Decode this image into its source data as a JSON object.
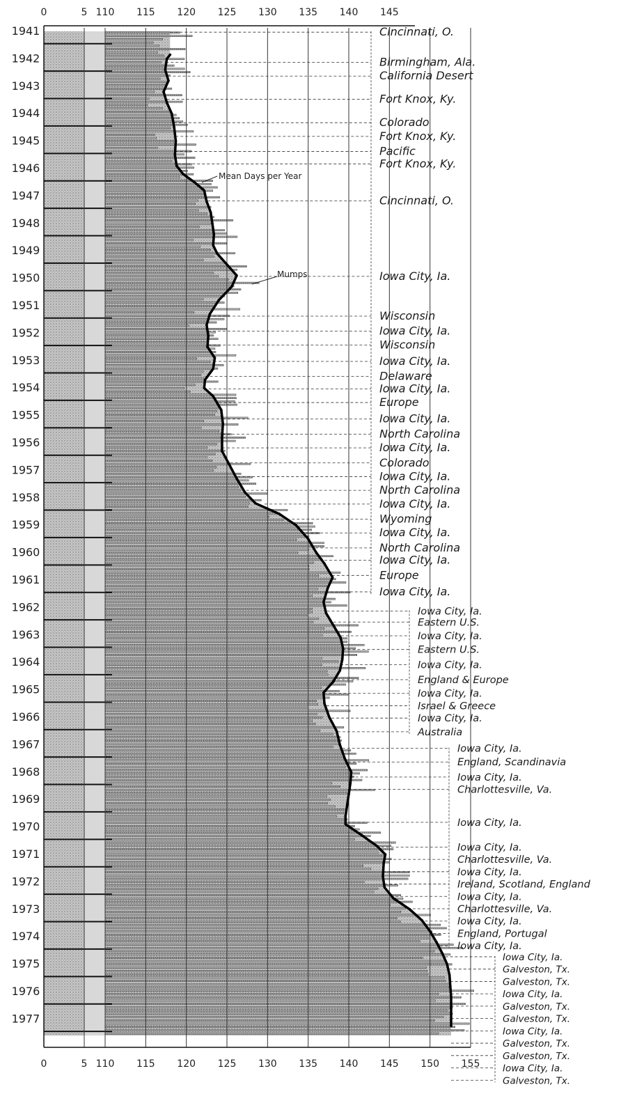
{
  "chart_data": {
    "type": "line",
    "title": "",
    "xlabel": "",
    "ylabel": "",
    "xlim": [
      0,
      155
    ],
    "axis_break": {
      "from": 5,
      "to": 110
    },
    "x_ticks_top": [
      "0",
      "5",
      "110",
      "115",
      "120",
      "125",
      "130",
      "135",
      "140",
      "145"
    ],
    "x_ticks_bottom": [
      "0",
      "5",
      "110",
      "115",
      "120",
      "125",
      "130",
      "135",
      "140",
      "145",
      "150",
      "155"
    ],
    "x_tick_values_top": [
      0,
      5,
      110,
      115,
      120,
      125,
      130,
      135,
      140,
      145
    ],
    "x_tick_values_bottom": [
      0,
      5,
      110,
      115,
      120,
      125,
      130,
      135,
      140,
      145,
      150,
      155
    ],
    "years": [
      "1941",
      "1942",
      "1943",
      "1944",
      "1945",
      "1946",
      "1947",
      "1948",
      "1949",
      "1950",
      "1951",
      "1952",
      "1953",
      "1954",
      "1955",
      "1956",
      "1957",
      "1958",
      "1959",
      "1960",
      "1961",
      "1962",
      "1963",
      "1964",
      "1965",
      "1966",
      "1967",
      "1968",
      "1969",
      "1970",
      "1971",
      "1972",
      "1973",
      "1974",
      "1975",
      "1976",
      "1977"
    ],
    "annotations": [
      "Mean Days per Year",
      "Mumps"
    ],
    "series": [
      {
        "name": "Mean Days per Year",
        "points": [
          [
            1941.85,
            118.0
          ],
          [
            1942.0,
            117.6
          ],
          [
            1942.4,
            117.4
          ],
          [
            1942.8,
            117.8
          ],
          [
            1943.2,
            117.2
          ],
          [
            1943.6,
            117.6
          ],
          [
            1944.0,
            118.2
          ],
          [
            1944.5,
            118.5
          ],
          [
            1945.0,
            118.7
          ],
          [
            1945.5,
            118.6
          ],
          [
            1945.9,
            118.8
          ],
          [
            1946.2,
            119.6
          ],
          [
            1946.5,
            121.0
          ],
          [
            1946.8,
            122.2
          ],
          [
            1947.2,
            122.5
          ],
          [
            1947.6,
            123.0
          ],
          [
            1948.0,
            123.2
          ],
          [
            1948.4,
            123.4
          ],
          [
            1948.8,
            123.3
          ],
          [
            1949.1,
            123.8
          ],
          [
            1949.5,
            125.0
          ],
          [
            1949.9,
            126.2
          ],
          [
            1950.3,
            125.6
          ],
          [
            1950.8,
            124.0
          ],
          [
            1951.3,
            122.9
          ],
          [
            1951.7,
            122.5
          ],
          [
            1952.1,
            122.7
          ],
          [
            1952.5,
            122.6
          ],
          [
            1952.9,
            123.5
          ],
          [
            1953.3,
            123.3
          ],
          [
            1953.7,
            122.3
          ],
          [
            1954.0,
            122.2
          ],
          [
            1954.3,
            123.3
          ],
          [
            1954.8,
            124.3
          ],
          [
            1955.3,
            124.5
          ],
          [
            1955.8,
            124.4
          ],
          [
            1956.3,
            124.4
          ],
          [
            1956.8,
            125.3
          ],
          [
            1957.3,
            126.2
          ],
          [
            1957.8,
            127.2
          ],
          [
            1958.2,
            128.5
          ],
          [
            1958.6,
            131.5
          ],
          [
            1959.0,
            133.5
          ],
          [
            1959.5,
            135.0
          ],
          [
            1960.0,
            136.0
          ],
          [
            1960.4,
            137.0
          ],
          [
            1960.9,
            138.0
          ],
          [
            1961.3,
            137.4
          ],
          [
            1961.8,
            136.9
          ],
          [
            1962.2,
            137.2
          ],
          [
            1962.6,
            138.0
          ],
          [
            1963.1,
            139.0
          ],
          [
            1963.5,
            139.3
          ],
          [
            1963.9,
            139.2
          ],
          [
            1964.3,
            138.9
          ],
          [
            1964.7,
            138.1
          ],
          [
            1965.1,
            136.9
          ],
          [
            1965.5,
            137.0
          ],
          [
            1966.0,
            137.6
          ],
          [
            1966.5,
            138.5
          ],
          [
            1967.0,
            138.9
          ],
          [
            1967.5,
            139.5
          ],
          [
            1968.0,
            140.3
          ],
          [
            1968.4,
            140.2
          ],
          [
            1968.8,
            140.0
          ],
          [
            1969.2,
            139.8
          ],
          [
            1969.6,
            139.6
          ],
          [
            1969.9,
            139.6
          ],
          [
            1970.3,
            141.6
          ],
          [
            1970.7,
            143.5
          ],
          [
            1971.0,
            144.5
          ],
          [
            1971.3,
            144.3
          ],
          [
            1971.8,
            144.2
          ],
          [
            1972.2,
            144.4
          ],
          [
            1972.6,
            145.5
          ],
          [
            1973.0,
            147.5
          ],
          [
            1973.4,
            149.0
          ],
          [
            1973.8,
            150.0
          ],
          [
            1974.2,
            150.8
          ],
          [
            1974.6,
            151.5
          ],
          [
            1975.0,
            152.1
          ],
          [
            1975.4,
            152.4
          ],
          [
            1975.8,
            152.5
          ],
          [
            1976.2,
            152.6
          ],
          [
            1976.6,
            152.6
          ],
          [
            1977.0,
            152.6
          ],
          [
            1977.25,
            152.6
          ]
        ]
      }
    ],
    "locations": {
      "col1": [
        {
          "label": "Cincinnati, O.",
          "year": 1940.7
        },
        {
          "label": "Birmingham, Ala.",
          "year": 1941.8
        },
        {
          "label": "California Desert",
          "year": 1942.3
        },
        {
          "label": "Fort Knox, Ky.",
          "year": 1943.15
        },
        {
          "label": "Colorado",
          "year": 1944.0
        },
        {
          "label": "Fort Knox, Ky.",
          "year": 1944.5
        },
        {
          "label": "Pacific",
          "year": 1945.05
        },
        {
          "label": "Fort Knox, Ky.",
          "year": 1945.5
        },
        {
          "label": "Cincinnati, O.",
          "year": 1946.85
        },
        {
          "label": "Iowa City, Ia.",
          "year": 1949.6
        },
        {
          "label": "Wisconsin",
          "year": 1951.05
        },
        {
          "label": "Iowa City, Ia.",
          "year": 1951.6
        },
        {
          "label": "Wisconsin",
          "year": 1952.1
        },
        {
          "label": "Iowa City, Ia.",
          "year": 1952.7
        },
        {
          "label": "Delaware",
          "year": 1953.25
        },
        {
          "label": "Iowa City, Ia.",
          "year": 1953.7
        },
        {
          "label": "Europe",
          "year": 1954.2
        },
        {
          "label": "Iowa City, Ia.",
          "year": 1954.8
        },
        {
          "label": "North Carolina",
          "year": 1955.35
        },
        {
          "label": "Iowa City, Ia.",
          "year": 1955.85
        },
        {
          "label": "Colorado",
          "year": 1956.4
        },
        {
          "label": "Iowa City, Ia.",
          "year": 1956.9
        },
        {
          "label": "North Carolina",
          "year": 1957.4
        },
        {
          "label": "Iowa City, Ia.",
          "year": 1957.9
        },
        {
          "label": "Wyoming",
          "year": 1958.45
        },
        {
          "label": "Iowa City, Ia.",
          "year": 1958.95
        },
        {
          "label": "North Carolina",
          "year": 1959.5
        },
        {
          "label": "Iowa City, Ia.",
          "year": 1959.95
        },
        {
          "label": "Europe",
          "year": 1960.5
        },
        {
          "label": "Iowa City, Ia.",
          "year": 1961.1
        }
      ],
      "col2": [
        {
          "label": "Iowa City, Ia.",
          "year": 1961.8
        },
        {
          "label": "Eastern U.S.",
          "year": 1962.2
        },
        {
          "label": "Iowa City, Ia.",
          "year": 1962.7
        },
        {
          "label": "Eastern U.S.",
          "year": 1963.2
        },
        {
          "label": "Iowa City, Ia.",
          "year": 1963.75
        },
        {
          "label": "England & Europe",
          "year": 1964.3
        },
        {
          "label": "Iowa City, Ia.",
          "year": 1964.8
        },
        {
          "label": "Israel & Greece",
          "year": 1965.25
        },
        {
          "label": "Iowa City, Ia.",
          "year": 1965.7
        },
        {
          "label": "Australia",
          "year": 1966.2
        }
      ],
      "col3": [
        {
          "label": "Iowa City, Ia.",
          "year": 1966.8
        },
        {
          "label": "England, Scandinavia",
          "year": 1967.3
        },
        {
          "label": "Iowa City, Ia.",
          "year": 1967.85
        },
        {
          "label": "Charlottesville, Va.",
          "year": 1968.3
        },
        {
          "label": "Iowa City, Ia.",
          "year": 1969.5
        },
        {
          "label": "Iowa City, Ia.",
          "year": 1970.4
        },
        {
          "label": "Charlottesville, Va.",
          "year": 1970.85
        },
        {
          "label": "Iowa City, Ia.",
          "year": 1971.3
        },
        {
          "label": "Ireland, Scotland, England",
          "year": 1971.75
        },
        {
          "label": "Iowa City, Ia.",
          "year": 1972.2
        },
        {
          "label": "Charlottesville, Va.",
          "year": 1972.65
        },
        {
          "label": "Iowa City, Ia.",
          "year": 1973.1
        },
        {
          "label": "England, Portugal",
          "year": 1973.55
        },
        {
          "label": "Iowa City, Ia.",
          "year": 1974.0
        }
      ],
      "col4": [
        {
          "label": "Iowa City, Ia.",
          "year": 1974.4
        },
        {
          "label": "Galveston, Tx.",
          "year": 1974.85
        },
        {
          "label": "Galveston, Tx.",
          "year": 1975.3
        },
        {
          "label": "Iowa City, Ia.",
          "year": 1975.75
        },
        {
          "label": "Galveston, Tx.",
          "year": 1976.2
        },
        {
          "label": "Galveston, Tx.",
          "year": 1976.65
        },
        {
          "label": "Iowa City, Ia.",
          "year": 1977.1
        },
        {
          "label": "Galveston, Tx.",
          "year": 1977.55
        },
        {
          "label": "Galveston, Tx.",
          "year": 1978.0
        },
        {
          "label": "Iowa City, Ia.",
          "year": 1978.45
        },
        {
          "label": "Galveston, Tx.",
          "year": 1978.9
        }
      ]
    },
    "grid": true,
    "legend": "none"
  }
}
